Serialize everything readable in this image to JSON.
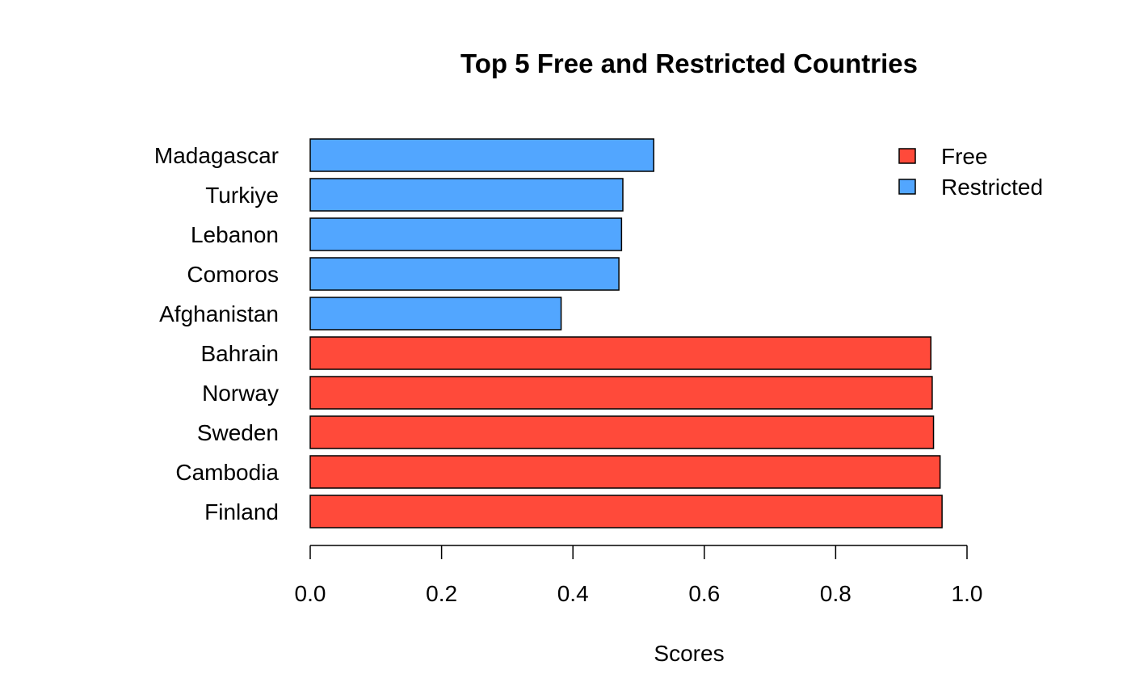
{
  "chart_data": {
    "type": "bar",
    "orientation": "horizontal",
    "title": "Top 5 Free and Restricted Countries",
    "xlabel": "Scores",
    "ylabel": "",
    "xlim": [
      0,
      1
    ],
    "xticks": [
      "0.0",
      "0.2",
      "0.4",
      "0.6",
      "0.8",
      "1.0"
    ],
    "grid": false,
    "legend_position": "top-right",
    "categories": [
      "Finland",
      "Cambodia",
      "Sweden",
      "Norway",
      "Bahrain",
      "Afghanistan",
      "Comoros",
      "Lebanon",
      "Turkiye",
      "Madagascar"
    ],
    "values": [
      0.962,
      0.959,
      0.949,
      0.947,
      0.945,
      0.382,
      0.47,
      0.474,
      0.476,
      0.523
    ],
    "groups": [
      "Free",
      "Free",
      "Free",
      "Free",
      "Free",
      "Restricted",
      "Restricted",
      "Restricted",
      "Restricted",
      "Restricted"
    ],
    "legend": [
      {
        "label": "Free",
        "color": "#FF4A3A"
      },
      {
        "label": "Restricted",
        "color": "#52A6FF"
      }
    ]
  }
}
